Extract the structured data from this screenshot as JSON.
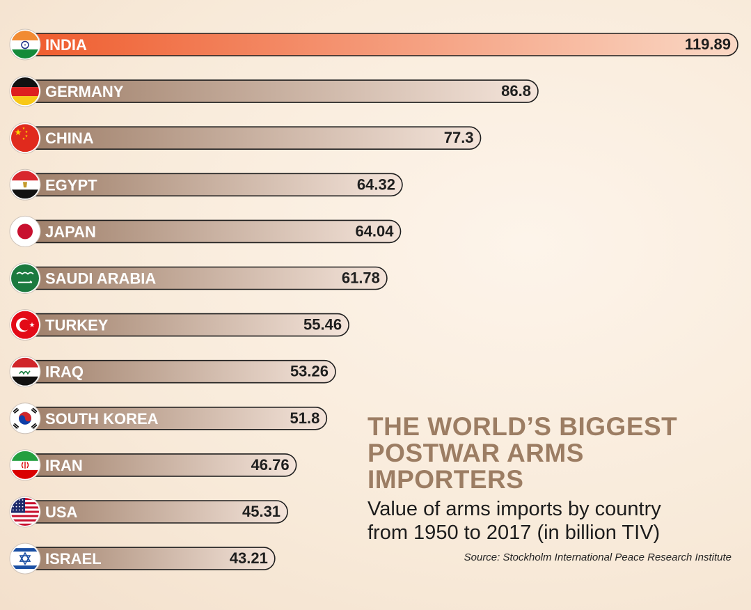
{
  "chart_data": {
    "type": "bar",
    "orientation": "horizontal",
    "title": "THE WORLD’S BIGGEST\nPOSTWAR ARMS IMPORTERS",
    "subtitle": "Value of arms imports by country\nfrom 1950 to 2017 (in billion TIV)",
    "source": "Source: Stockholm International Peace Research Institute",
    "categories": [
      "INDIA",
      "GERMANY",
      "CHINA",
      "EGYPT",
      "JAPAN",
      "SAUDI ARABIA",
      "TURKEY",
      "IRAQ",
      "SOUTH KOREA",
      "IRAN",
      "USA",
      "ISRAEL"
    ],
    "values": [
      119.89,
      86.8,
      77.3,
      64.32,
      64.04,
      61.78,
      55.46,
      53.26,
      51.8,
      46.76,
      45.31,
      43.21
    ],
    "value_labels": [
      "119.89",
      "86.8",
      "77.3",
      "64.32",
      "64.04",
      "61.78",
      "55.46",
      "53.26",
      "51.8",
      "46.76",
      "45.31",
      "43.21"
    ],
    "flag_icons": [
      "india-flag-icon",
      "germany-flag-icon",
      "china-flag-icon",
      "egypt-flag-icon",
      "japan-flag-icon",
      "saudi-arabia-flag-icon",
      "turkey-flag-icon",
      "iraq-flag-icon",
      "south-korea-flag-icon",
      "iran-flag-icon",
      "usa-flag-icon",
      "israel-flag-icon"
    ],
    "highlight_category": "INDIA",
    "colors": {
      "highlight_start": "#ef5a2b",
      "highlight_end": "#fad8c5",
      "bar_start": "#9b7b65",
      "bar_end": "#f4e4da",
      "bar_outline": "#1e1e1e",
      "title": "#9c7d63"
    },
    "legend": "none",
    "grid": false
  }
}
